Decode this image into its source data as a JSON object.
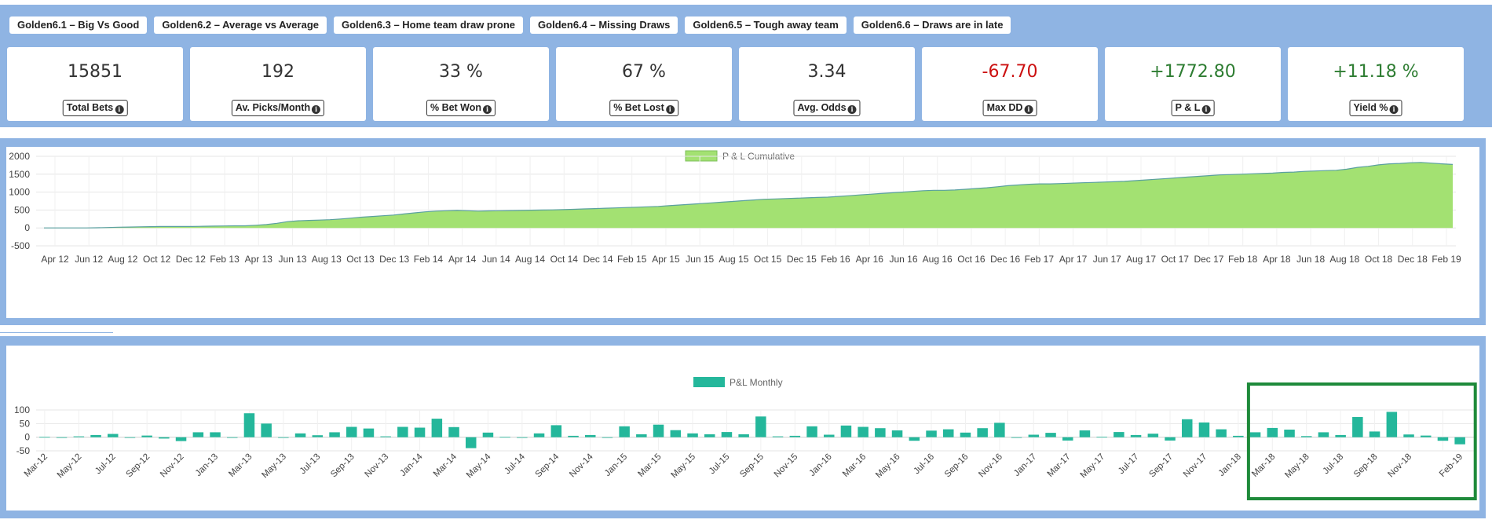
{
  "tabs": [
    "Golden6.1 – Big Vs Good",
    "Golden6.2 – Average vs Average",
    "Golden6.3 – Home team draw prone",
    "Golden6.4 – Missing Draws",
    "Golden6.5 – Tough away team",
    "Golden6.6 – Draws are in late"
  ],
  "stats": [
    {
      "value": "15851",
      "label": "Total Bets",
      "color": "#333333"
    },
    {
      "value": "192",
      "label": "Av. Picks/Month",
      "color": "#333333"
    },
    {
      "value": "33 %",
      "label": "% Bet Won",
      "color": "#333333"
    },
    {
      "value": "67 %",
      "label": "% Bet Lost",
      "color": "#333333"
    },
    {
      "value": "3.34",
      "label": "Avg. Odds",
      "color": "#333333"
    },
    {
      "value": "-67.70",
      "label": "Max DD",
      "color": "#cc1111"
    },
    {
      "value": "+1772.80",
      "label": "P & L",
      "color": "#2e7d32"
    },
    {
      "value": "+11.18 %",
      "label": "Yield %",
      "color": "#2e7d32"
    }
  ],
  "chart_data": [
    {
      "type": "area",
      "legend": "P & L Cumulative",
      "fill_color": "#a3e172",
      "line_color": "#5aa0a0",
      "ylim": [
        -500,
        2000
      ],
      "yticks": [
        2000,
        1500,
        1000,
        500,
        0,
        -500
      ],
      "xtick_labels": [
        "Apr 12",
        "Jun 12",
        "Aug 12",
        "Oct 12",
        "Dec 12",
        "Feb 13",
        "Apr 13",
        "Jun 13",
        "Aug 13",
        "Oct 13",
        "Dec 13",
        "Feb 14",
        "Apr 14",
        "Jun 14",
        "Aug 14",
        "Oct 14",
        "Dec 14",
        "Feb 15",
        "Apr 15",
        "Jun 15",
        "Aug 15",
        "Oct 15",
        "Dec 15",
        "Feb 16",
        "Apr 16",
        "Jun 16",
        "Aug 16",
        "Oct 16",
        "Dec 16",
        "Feb 17",
        "Apr 17",
        "Jun 17",
        "Aug 17",
        "Oct 17",
        "Dec 17",
        "Feb 18",
        "Apr 18",
        "Jun 18",
        "Aug 18",
        "Oct 18",
        "Dec 18",
        "Feb 19"
      ],
      "series": [
        {
          "values": [
            0,
            0,
            0,
            0,
            0,
            5,
            10,
            20,
            25,
            30,
            35,
            40,
            40,
            40,
            40,
            45,
            50,
            55,
            60,
            60,
            75,
            95,
            130,
            175,
            200,
            210,
            220,
            230,
            250,
            275,
            300,
            320,
            340,
            360,
            390,
            420,
            450,
            470,
            480,
            490,
            480,
            470,
            475,
            480,
            485,
            490,
            495,
            500,
            505,
            510,
            520,
            530,
            540,
            550,
            560,
            570,
            580,
            590,
            600,
            620,
            640,
            660,
            680,
            700,
            720,
            740,
            760,
            780,
            800,
            810,
            820,
            830,
            840,
            850,
            860,
            880,
            900,
            920,
            940,
            960,
            980,
            1000,
            1020,
            1040,
            1050,
            1050,
            1060,
            1080,
            1100,
            1120,
            1150,
            1180,
            1200,
            1220,
            1230,
            1230,
            1240,
            1250,
            1260,
            1270,
            1280,
            1290,
            1300,
            1320,
            1340,
            1360,
            1380,
            1400,
            1420,
            1440,
            1460,
            1480,
            1490,
            1500,
            1510,
            1520,
            1530,
            1550,
            1560,
            1580,
            1590,
            1600,
            1610,
            1640,
            1690,
            1720,
            1760,
            1790,
            1800,
            1820,
            1830,
            1810,
            1790,
            1772.8
          ]
        }
      ]
    },
    {
      "type": "bar",
      "legend": "P&L Monthly",
      "bar_color": "#24b79b",
      "ylim": [
        -50,
        100
      ],
      "yticks": [
        100,
        50,
        0,
        -50
      ],
      "categories": [
        "Mar-12",
        "Apr-12",
        "May-12",
        "Jun-12",
        "Jul-12",
        "Aug-12",
        "Sep-12",
        "Oct-12",
        "Nov-12",
        "Dec-12",
        "Jan-13",
        "Feb-13",
        "Mar-13",
        "Apr-13",
        "May-13",
        "Jun-13",
        "Jul-13",
        "Aug-13",
        "Sep-13",
        "Oct-13",
        "Nov-13",
        "Dec-13",
        "Jan-14",
        "Feb-14",
        "Mar-14",
        "Apr-14",
        "May-14",
        "Jun-14",
        "Jul-14",
        "Aug-14",
        "Sep-14",
        "Oct-14",
        "Nov-14",
        "Dec-14",
        "Jan-15",
        "Feb-15",
        "Mar-15",
        "Apr-15",
        "May-15",
        "Jun-15",
        "Jul-15",
        "Aug-15",
        "Sep-15",
        "Oct-15",
        "Nov-15",
        "Dec-15",
        "Jan-16",
        "Feb-16",
        "Mar-16",
        "Apr-16",
        "May-16",
        "Jun-16",
        "Jul-16",
        "Aug-16",
        "Sep-16",
        "Oct-16",
        "Nov-16",
        "Dec-16",
        "Jan-17",
        "Feb-17",
        "Mar-17",
        "Apr-17",
        "May-17",
        "Jun-17",
        "Jul-17",
        "Aug-17",
        "Sep-17",
        "Oct-17",
        "Nov-17",
        "Dec-17",
        "Jan-18",
        "Feb-18",
        "Mar-18",
        "Apr-18",
        "May-18",
        "Jun-18",
        "Jul-18",
        "Aug-18",
        "Sep-18",
        "Oct-18",
        "Nov-18",
        "Dec-18",
        "Jan-19",
        "Feb-19"
      ],
      "values": [
        1,
        0,
        3,
        8,
        12,
        0,
        6,
        -5,
        -14,
        18,
        18,
        -2,
        88,
        50,
        -1,
        14,
        7,
        18,
        38,
        32,
        3,
        38,
        35,
        68,
        37,
        -40,
        17,
        1,
        0,
        14,
        44,
        5,
        8,
        0,
        40,
        11,
        46,
        26,
        14,
        11,
        19,
        11,
        76,
        3,
        5,
        40,
        9,
        43,
        38,
        33,
        25,
        -13,
        24,
        29,
        17,
        33,
        53,
        0,
        9,
        16,
        -12,
        25,
        2,
        19,
        8,
        13,
        -12,
        66,
        54,
        29,
        5,
        18,
        34,
        28,
        4,
        18,
        8,
        74,
        21,
        93,
        10,
        6,
        -13,
        -26
      ],
      "shown_xtick_labels": [
        "Mar-12",
        "May-12",
        "Jul-12",
        "Sep-12",
        "Nov-12",
        "Jan-13",
        "Mar-13",
        "May-13",
        "Jul-13",
        "Sep-13",
        "Nov-13",
        "Jan-14",
        "Mar-14",
        "May-14",
        "Jul-14",
        "Sep-14",
        "Nov-14",
        "Jan-15",
        "Mar-15",
        "May-15",
        "Jul-15",
        "Sep-15",
        "Nov-15",
        "Jan-16",
        "Mar-16",
        "May-16",
        "Jul-16",
        "Sep-16",
        "Nov-16",
        "Jan-17",
        "Mar-17",
        "May-17",
        "Jul-17",
        "Sep-17",
        "Nov-17",
        "Jan-18",
        "Mar-18",
        "May-18",
        "Jul-18",
        "Sep-18",
        "Nov-18",
        "Feb-19"
      ],
      "highlight": {
        "from": "Feb-18",
        "to": "Feb-19",
        "color": "#1e8a3a"
      }
    }
  ]
}
